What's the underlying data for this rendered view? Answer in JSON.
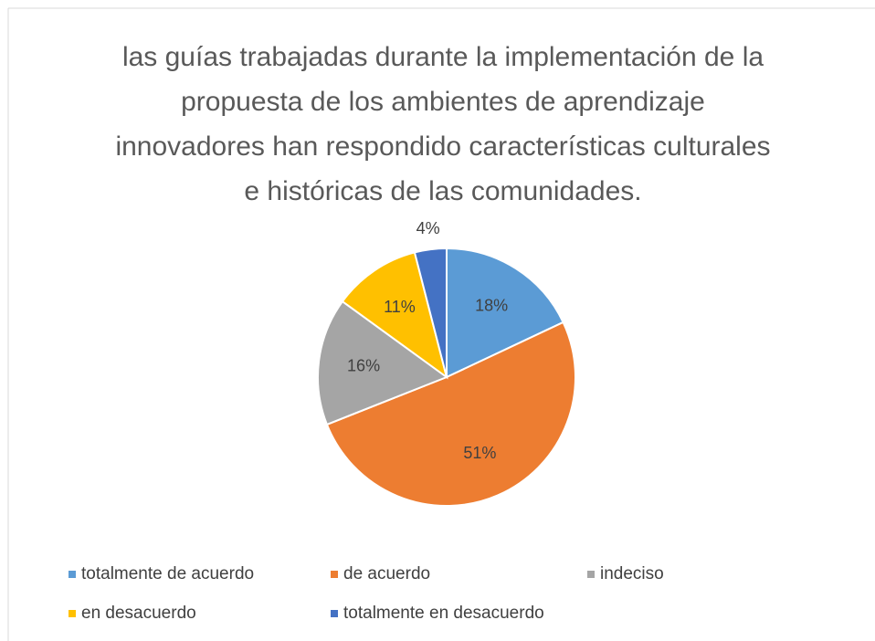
{
  "chart_data": {
    "type": "pie",
    "title": "las guías trabajadas durante la implementación de la propuesta de los ambientes de aprendizaje innovadores han respondido características culturales e históricas de las comunidades.",
    "categories": [
      "totalmente de acuerdo",
      "de acuerdo",
      "indeciso",
      "en desacuerdo",
      "totalmente en desacuerdo"
    ],
    "values": [
      18,
      51,
      16,
      11,
      4
    ],
    "value_labels": [
      "18%",
      "51%",
      "16%",
      "11%",
      "4%"
    ],
    "colors": [
      "#5b9bd5",
      "#ed7d31",
      "#a5a5a5",
      "#ffc000",
      "#4472c4"
    ],
    "legend": "bottom"
  }
}
